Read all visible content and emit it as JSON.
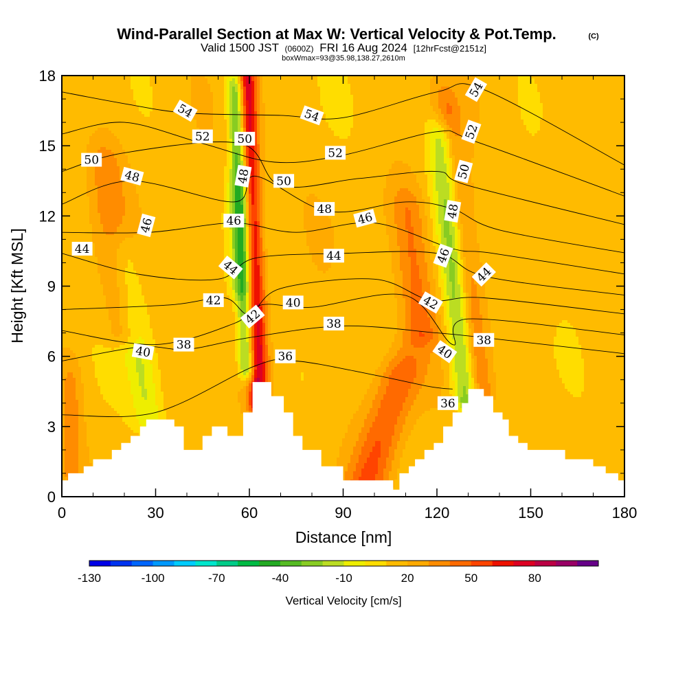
{
  "chart_data": {
    "type": "heatmap",
    "title": "Wind-Parallel Section at Max W: Vertical Velocity & Pot.Temp.",
    "title_mark": "(C)",
    "subtitle": {
      "valid": "Valid 1500 JST",
      "utc": "(0600Z)",
      "date": "FRI 16 Aug 2024",
      "forecast": "[12hrFcst@2151z]",
      "box": "boxWmax=93@35.98,138.27,2610m"
    },
    "xlabel": "Distance [nm]",
    "ylabel": "Height [Kft MSL]",
    "xlim": [
      0,
      180
    ],
    "ylim": [
      0,
      18
    ],
    "xticks": [
      0,
      30,
      60,
      90,
      120,
      150,
      180
    ],
    "yticks": [
      0,
      3,
      6,
      9,
      12,
      15,
      18
    ],
    "colorbar": {
      "label": "Vertical Velocity [cm/s]",
      "ticks": [
        "-130",
        "-100",
        "-70",
        "-40",
        "-10",
        "20",
        "50",
        "80"
      ],
      "colors": [
        "#0000e6",
        "#0033f0",
        "#0066ff",
        "#0099ff",
        "#00ccff",
        "#00e6cc",
        "#00cc88",
        "#00bb44",
        "#22aa22",
        "#55bb22",
        "#88cc22",
        "#bbdd22",
        "#eeee00",
        "#ffdd00",
        "#ffbb00",
        "#ffaa00",
        "#ff8c00",
        "#ff6a00",
        "#ff4400",
        "#ee1100",
        "#dd0022",
        "#bb0044",
        "#990066",
        "#660088"
      ]
    },
    "terrain_kft": [
      [
        0,
        0.7
      ],
      [
        2,
        0.7
      ],
      [
        2,
        1.0
      ],
      [
        7,
        1.0
      ],
      [
        7,
        1.3
      ],
      [
        10,
        1.3
      ],
      [
        10,
        1.6
      ],
      [
        16,
        1.6
      ],
      [
        16,
        2.0
      ],
      [
        19,
        2.0
      ],
      [
        19,
        2.3
      ],
      [
        22,
        2.3
      ],
      [
        22,
        2.6
      ],
      [
        25,
        2.6
      ],
      [
        25,
        3.0
      ],
      [
        27,
        3.0
      ],
      [
        27,
        3.3
      ],
      [
        36,
        3.3
      ],
      [
        36,
        3.0
      ],
      [
        39,
        3.0
      ],
      [
        39,
        2.0
      ],
      [
        45,
        2.0
      ],
      [
        45,
        2.6
      ],
      [
        48,
        2.6
      ],
      [
        48,
        3.0
      ],
      [
        53,
        3.0
      ],
      [
        53,
        2.6
      ],
      [
        58,
        2.6
      ],
      [
        58,
        3.6
      ],
      [
        61,
        3.6
      ],
      [
        61,
        4.9
      ],
      [
        67,
        4.9
      ],
      [
        67,
        4.3
      ],
      [
        71,
        4.3
      ],
      [
        71,
        3.6
      ],
      [
        74,
        3.6
      ],
      [
        74,
        2.6
      ],
      [
        77,
        2.6
      ],
      [
        77,
        2.0
      ],
      [
        83,
        2.0
      ],
      [
        83,
        1.3
      ],
      [
        90,
        1.3
      ],
      [
        90,
        0.7
      ],
      [
        106,
        0.7
      ],
      [
        106,
        0.3
      ],
      [
        108,
        0.3
      ],
      [
        108,
        1.0
      ],
      [
        111,
        1.0
      ],
      [
        111,
        1.3
      ],
      [
        113,
        1.3
      ],
      [
        113,
        1.6
      ],
      [
        116,
        1.6
      ],
      [
        116,
        2.0
      ],
      [
        119,
        2.0
      ],
      [
        119,
        2.3
      ],
      [
        122,
        2.3
      ],
      [
        122,
        3.0
      ],
      [
        125,
        3.0
      ],
      [
        125,
        3.6
      ],
      [
        128,
        3.6
      ],
      [
        128,
        4.0
      ],
      [
        130,
        4.0
      ],
      [
        130,
        4.6
      ],
      [
        135,
        4.6
      ],
      [
        135,
        4.3
      ],
      [
        138,
        4.3
      ],
      [
        138,
        3.6
      ],
      [
        141,
        3.6
      ],
      [
        141,
        3.3
      ],
      [
        143,
        3.3
      ],
      [
        143,
        2.6
      ],
      [
        146,
        2.6
      ],
      [
        146,
        2.3
      ],
      [
        149,
        2.3
      ],
      [
        149,
        2.0
      ],
      [
        161,
        2.0
      ],
      [
        161,
        1.6
      ],
      [
        170,
        1.6
      ],
      [
        170,
        1.3
      ],
      [
        174,
        1.3
      ],
      [
        174,
        1.0
      ],
      [
        178,
        1.0
      ],
      [
        178,
        0.7
      ],
      [
        181,
        0.7
      ]
    ],
    "velocity_features": [
      {
        "x": 63,
        "y0": 4.0,
        "y1": 18,
        "tilt": -4.0,
        "w": 70,
        "sigma": 2.2
      },
      {
        "x": 59.5,
        "y0": 5.5,
        "y1": 17,
        "tilt": -3.5,
        "w": -60,
        "sigma": 2.0
      },
      {
        "x": 133,
        "y0": 4.5,
        "y1": 16,
        "tilt": -10.0,
        "w": 45,
        "sigma": 3.2
      },
      {
        "x": 130,
        "y0": 4.2,
        "y1": 15,
        "tilt": -8.0,
        "w": -60,
        "sigma": 3.0
      },
      {
        "x": 98,
        "y0": 0.7,
        "y1": 5.0,
        "tilt": 10.0,
        "w": 35,
        "sigma": 5.0
      },
      {
        "x": 28,
        "y0": 3.3,
        "y1": 10.0,
        "tilt": -8.0,
        "w": -25,
        "sigma": 3.5
      },
      {
        "x": 20,
        "y0": 7.0,
        "y1": 14.0,
        "tilt": -6.0,
        "w": 20,
        "sigma": 4.0
      },
      {
        "x": 3,
        "y0": 1.0,
        "y1": 4.5,
        "tilt": 0.0,
        "w": 18,
        "sigma": 2.5
      },
      {
        "x": 57,
        "y0": 9.0,
        "y1": 12.5,
        "tilt": 0.0,
        "w": -20,
        "sigma": 3.0
      },
      {
        "x": 115,
        "y0": 7.0,
        "y1": 12.0,
        "tilt": -4.0,
        "w": 25,
        "sigma": 4.0
      }
    ],
    "theta_contours": [
      {
        "label": "36",
        "points": [
          [
            0,
            3.5
          ],
          [
            30,
            3.6
          ],
          [
            62,
            5.6
          ],
          [
            75,
            5.8
          ],
          [
            100,
            5.2
          ],
          [
            118,
            4.7
          ],
          [
            125,
            4.6
          ]
        ]
      },
      {
        "label": "38",
        "points": [
          [
            0,
            5.8
          ],
          [
            25,
            6.4
          ],
          [
            40,
            6.3
          ],
          [
            60,
            6.8
          ],
          [
            90,
            7.3
          ],
          [
            120,
            7.0
          ],
          [
            135,
            6.8
          ],
          [
            181,
            6.1
          ]
        ]
      },
      {
        "label": "40",
        "points": [
          [
            0,
            7.1
          ],
          [
            30,
            6.5
          ],
          [
            55,
            7.4
          ],
          [
            64,
            8.2
          ],
          [
            80,
            8.1
          ],
          [
            110,
            8.6
          ],
          [
            125,
            6.5
          ],
          [
            130,
            7.6
          ],
          [
            181,
            6.9
          ]
        ]
      },
      {
        "label": "42",
        "points": [
          [
            0,
            8.0
          ],
          [
            35,
            8.2
          ],
          [
            52,
            8.5
          ],
          [
            60,
            7.8
          ],
          [
            70,
            8.9
          ],
          [
            100,
            9.3
          ],
          [
            118,
            8.4
          ],
          [
            135,
            8.5
          ],
          [
            181,
            7.8
          ]
        ]
      },
      {
        "label": "44",
        "points": [
          [
            0,
            10.4
          ],
          [
            25,
            9.5
          ],
          [
            50,
            9.3
          ],
          [
            62,
            10.2
          ],
          [
            90,
            10.4
          ],
          [
            120,
            10.4
          ],
          [
            136,
            9.4
          ],
          [
            181,
            8.6
          ]
        ]
      },
      {
        "label": "46",
        "points": [
          [
            0,
            11.3
          ],
          [
            28,
            11.3
          ],
          [
            55,
            11.7
          ],
          [
            75,
            11.3
          ],
          [
            100,
            11.7
          ],
          [
            125,
            10.6
          ],
          [
            138,
            10.4
          ],
          [
            181,
            9.5
          ]
        ]
      },
      {
        "label": "48",
        "points": [
          [
            0,
            12.5
          ],
          [
            22,
            13.5
          ],
          [
            55,
            12.6
          ],
          [
            62,
            13.7
          ],
          [
            85,
            12.2
          ],
          [
            110,
            12.6
          ],
          [
            125,
            12.3
          ],
          [
            140,
            11.4
          ],
          [
            181,
            10.4
          ]
        ]
      },
      {
        "label": "50",
        "points": [
          [
            0,
            13.9
          ],
          [
            20,
            14.7
          ],
          [
            57,
            15.1
          ],
          [
            70,
            13.3
          ],
          [
            95,
            13.6
          ],
          [
            120,
            13.9
          ],
          [
            130,
            13.3
          ],
          [
            181,
            11.6
          ]
        ]
      },
      {
        "label": "52",
        "points": [
          [
            0,
            15.5
          ],
          [
            20,
            16.0
          ],
          [
            45,
            15.1
          ],
          [
            68,
            14.3
          ],
          [
            90,
            14.6
          ],
          [
            120,
            15.6
          ],
          [
            132,
            15.2
          ],
          [
            181,
            12.8
          ]
        ]
      },
      {
        "label": "54",
        "points": [
          [
            0,
            17.3
          ],
          [
            20,
            16.8
          ],
          [
            40,
            16.4
          ],
          [
            70,
            16.3
          ],
          [
            90,
            16.2
          ],
          [
            120,
            17.3
          ],
          [
            135,
            17.4
          ],
          [
            181,
            14.1
          ]
        ]
      }
    ],
    "contour_labels": [
      {
        "text": "54",
        "x": 39.5,
        "y": 16.5,
        "angle": 30
      },
      {
        "text": "54",
        "x": 80,
        "y": 16.3,
        "angle": 20
      },
      {
        "text": "54",
        "x": 132.5,
        "y": 17.4,
        "angle": -60
      },
      {
        "text": "52",
        "x": 45,
        "y": 15.4,
        "angle": 0
      },
      {
        "text": "52",
        "x": 87.5,
        "y": 14.7,
        "angle": 0
      },
      {
        "text": "52",
        "x": 131,
        "y": 15.6,
        "angle": -70
      },
      {
        "text": "50",
        "x": 9.5,
        "y": 14.4,
        "angle": 0
      },
      {
        "text": "50",
        "x": 58.5,
        "y": 15.3,
        "angle": 0
      },
      {
        "text": "50",
        "x": 71,
        "y": 13.5,
        "angle": 0
      },
      {
        "text": "50",
        "x": 128.5,
        "y": 13.9,
        "angle": -75
      },
      {
        "text": "48",
        "x": 22.5,
        "y": 13.7,
        "angle": 15
      },
      {
        "text": "48",
        "x": 58,
        "y": 13.7,
        "angle": -80
      },
      {
        "text": "48",
        "x": 84,
        "y": 12.3,
        "angle": 0
      },
      {
        "text": "48",
        "x": 125,
        "y": 12.2,
        "angle": -80
      },
      {
        "text": "46",
        "x": 27,
        "y": 11.6,
        "angle": -75
      },
      {
        "text": "46",
        "x": 55,
        "y": 11.8,
        "angle": 0
      },
      {
        "text": "46",
        "x": 97,
        "y": 11.9,
        "angle": -15
      },
      {
        "text": "46",
        "x": 122,
        "y": 10.3,
        "angle": -70
      },
      {
        "text": "44",
        "x": 6.5,
        "y": 10.6,
        "angle": 0
      },
      {
        "text": "44",
        "x": 54,
        "y": 9.8,
        "angle": 40
      },
      {
        "text": "44",
        "x": 87,
        "y": 10.3,
        "angle": 0
      },
      {
        "text": "44",
        "x": 135,
        "y": 9.5,
        "angle": -45
      },
      {
        "text": "42",
        "x": 48.5,
        "y": 8.4,
        "angle": 0
      },
      {
        "text": "42",
        "x": 61,
        "y": 7.7,
        "angle": -40
      },
      {
        "text": "42",
        "x": 118,
        "y": 8.3,
        "angle": 30
      },
      {
        "text": "40",
        "x": 26,
        "y": 6.2,
        "angle": 10
      },
      {
        "text": "40",
        "x": 74,
        "y": 8.3,
        "angle": 0
      },
      {
        "text": "40",
        "x": 122.5,
        "y": 6.2,
        "angle": 35
      },
      {
        "text": "38",
        "x": 39,
        "y": 6.5,
        "angle": 0
      },
      {
        "text": "38",
        "x": 87,
        "y": 7.4,
        "angle": 0
      },
      {
        "text": "38",
        "x": 135,
        "y": 6.7,
        "angle": 0
      },
      {
        "text": "36",
        "x": 71.5,
        "y": 6.0,
        "angle": 0
      },
      {
        "text": "36",
        "x": 123.5,
        "y": 4.0,
        "angle": 0
      }
    ]
  }
}
